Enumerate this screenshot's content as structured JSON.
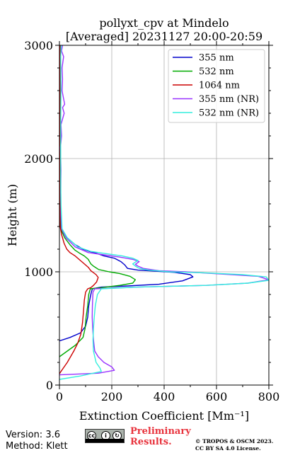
{
  "chart_data": {
    "type": "line",
    "title_line1": "pollyxt_cpv at Mindelo",
    "title_line2": "[Averaged] 20231127 20:00-20:59",
    "xlabel": "Extinction Coefficient [Mm⁻¹]",
    "ylabel": "Height (m)",
    "xlim": [
      0,
      800
    ],
    "ylim": [
      0,
      3000
    ],
    "x_ticks": [
      0,
      200,
      400,
      600,
      800
    ],
    "y_ticks": [
      0,
      1000,
      2000,
      3000
    ],
    "grid": true,
    "legend_position": "top-right",
    "series": [
      {
        "name": "355 nm",
        "color": "#0000cc",
        "points": [
          [
            0,
            390
          ],
          [
            40,
            420
          ],
          [
            80,
            460
          ],
          [
            100,
            520
          ],
          [
            108,
            600
          ],
          [
            112,
            700
          ],
          [
            118,
            780
          ],
          [
            122,
            820
          ],
          [
            126,
            850
          ],
          [
            160,
            865
          ],
          [
            260,
            875
          ],
          [
            380,
            890
          ],
          [
            470,
            920
          ],
          [
            510,
            955
          ],
          [
            500,
            975
          ],
          [
            440,
            995
          ],
          [
            370,
            1005
          ],
          [
            300,
            1015
          ],
          [
            260,
            1030
          ],
          [
            250,
            1060
          ],
          [
            235,
            1090
          ],
          [
            210,
            1120
          ],
          [
            170,
            1140
          ],
          [
            140,
            1165
          ],
          [
            115,
            1180
          ],
          [
            90,
            1200
          ],
          [
            60,
            1240
          ],
          [
            30,
            1300
          ],
          [
            8,
            1360
          ],
          [
            3,
            1500
          ],
          [
            2,
            1800
          ],
          [
            2,
            2200
          ],
          [
            3,
            2600
          ],
          [
            3,
            3000
          ]
        ]
      },
      {
        "name": "532 nm",
        "color": "#00aa00",
        "points": [
          [
            0,
            250
          ],
          [
            30,
            300
          ],
          [
            60,
            350
          ],
          [
            90,
            420
          ],
          [
            98,
            500
          ],
          [
            102,
            600
          ],
          [
            108,
            700
          ],
          [
            112,
            800
          ],
          [
            118,
            850
          ],
          [
            160,
            860
          ],
          [
            230,
            880
          ],
          [
            280,
            900
          ],
          [
            290,
            930
          ],
          [
            270,
            960
          ],
          [
            230,
            985
          ],
          [
            190,
            1000
          ],
          [
            150,
            1020
          ],
          [
            130,
            1050
          ],
          [
            120,
            1070
          ],
          [
            110,
            1110
          ],
          [
            95,
            1140
          ],
          [
            80,
            1160
          ],
          [
            60,
            1190
          ],
          [
            40,
            1240
          ],
          [
            20,
            1300
          ],
          [
            5,
            1380
          ],
          [
            2,
            1500
          ],
          [
            2,
            1800
          ],
          [
            2,
            2200
          ],
          [
            2,
            2600
          ],
          [
            2,
            3000
          ]
        ]
      },
      {
        "name": "1064 nm",
        "color": "#cc0000",
        "points": [
          [
            0,
            100
          ],
          [
            15,
            150
          ],
          [
            30,
            200
          ],
          [
            55,
            300
          ],
          [
            70,
            370
          ],
          [
            82,
            450
          ],
          [
            88,
            550
          ],
          [
            92,
            650
          ],
          [
            95,
            750
          ],
          [
            100,
            820
          ],
          [
            108,
            850
          ],
          [
            120,
            860
          ],
          [
            130,
            880
          ],
          [
            142,
            910
          ],
          [
            148,
            950
          ],
          [
            140,
            975
          ],
          [
            120,
            1010
          ],
          [
            110,
            1040
          ],
          [
            100,
            1060
          ],
          [
            80,
            1100
          ],
          [
            60,
            1140
          ],
          [
            40,
            1170
          ],
          [
            28,
            1200
          ],
          [
            18,
            1250
          ],
          [
            8,
            1330
          ],
          [
            3,
            1400
          ],
          [
            2,
            1600
          ],
          [
            2,
            2000
          ],
          [
            2,
            2500
          ],
          [
            2,
            3000
          ]
        ]
      },
      {
        "name": "355 nm (NR)",
        "color": "#9933ff",
        "points": [
          [
            0,
            90
          ],
          [
            150,
            105
          ],
          [
            210,
            130
          ],
          [
            200,
            160
          ],
          [
            170,
            200
          ],
          [
            148,
            250
          ],
          [
            135,
            300
          ],
          [
            130,
            400
          ],
          [
            127,
            500
          ],
          [
            125,
            600
          ],
          [
            126,
            700
          ],
          [
            128,
            820
          ],
          [
            135,
            850
          ],
          [
            300,
            865
          ],
          [
            560,
            880
          ],
          [
            720,
            900
          ],
          [
            800,
            930
          ],
          [
            760,
            960
          ],
          [
            620,
            980
          ],
          [
            480,
            1000
          ],
          [
            380,
            1010
          ],
          [
            320,
            1030
          ],
          [
            300,
            1050
          ],
          [
            290,
            1065
          ],
          [
            305,
            1090
          ],
          [
            280,
            1110
          ],
          [
            230,
            1130
          ],
          [
            170,
            1150
          ],
          [
            110,
            1170
          ],
          [
            60,
            1220
          ],
          [
            25,
            1300
          ],
          [
            8,
            1380
          ],
          [
            6,
            1500
          ],
          [
            5,
            1700
          ],
          [
            6,
            1900
          ],
          [
            4,
            2100
          ],
          [
            8,
            2200
          ],
          [
            6,
            2300
          ],
          [
            18,
            2400
          ],
          [
            12,
            2450
          ],
          [
            20,
            2480
          ],
          [
            14,
            2550
          ],
          [
            10,
            2600
          ],
          [
            12,
            2700
          ],
          [
            10,
            2800
          ],
          [
            16,
            2900
          ],
          [
            8,
            2950
          ],
          [
            12,
            3000
          ]
        ]
      },
      {
        "name": "532 nm (NR)",
        "color": "#33eedd",
        "points": [
          [
            0,
            50
          ],
          [
            80,
            80
          ],
          [
            160,
            120
          ],
          [
            155,
            150
          ],
          [
            140,
            200
          ],
          [
            130,
            300
          ],
          [
            128,
            400
          ],
          [
            130,
            500
          ],
          [
            133,
            600
          ],
          [
            137,
            700
          ],
          [
            145,
            800
          ],
          [
            160,
            850
          ],
          [
            300,
            865
          ],
          [
            560,
            880
          ],
          [
            720,
            900
          ],
          [
            800,
            925
          ],
          [
            790,
            955
          ],
          [
            700,
            975
          ],
          [
            560,
            990
          ],
          [
            420,
            1000
          ],
          [
            340,
            1015
          ],
          [
            305,
            1030
          ],
          [
            290,
            1050
          ],
          [
            280,
            1070
          ],
          [
            300,
            1100
          ],
          [
            280,
            1120
          ],
          [
            240,
            1140
          ],
          [
            180,
            1160
          ],
          [
            120,
            1180
          ],
          [
            70,
            1220
          ],
          [
            30,
            1300
          ],
          [
            10,
            1380
          ],
          [
            6,
            1600
          ],
          [
            5,
            1800
          ],
          [
            5,
            2000
          ],
          [
            5,
            2300
          ],
          [
            6,
            2600
          ],
          [
            5,
            2900
          ],
          [
            7,
            3000
          ]
        ]
      }
    ]
  },
  "footer": {
    "version": "Version: 3.6",
    "method": "Method: Klett",
    "preliminary_line1": "Preliminary",
    "preliminary_line2": "Results.",
    "copyright_line1": "© TROPOS & OSCM 2023.",
    "copyright_line2": "CC BY SA 4.0 License."
  },
  "license_badge": {
    "cc": "cc",
    "by": "i",
    "sa": "↻"
  }
}
